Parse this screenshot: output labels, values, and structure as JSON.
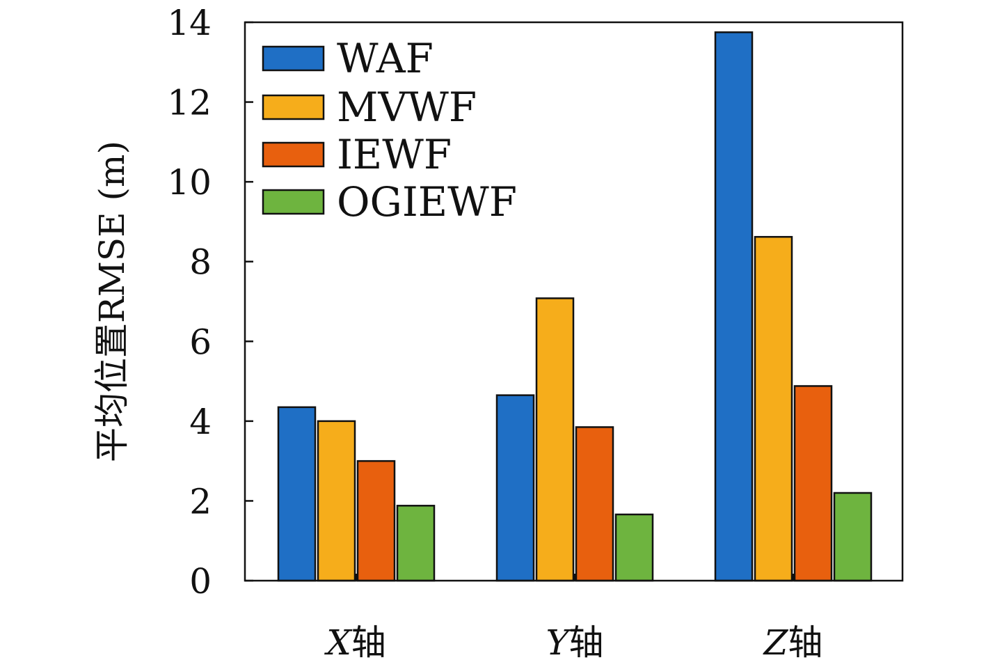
{
  "chart_data": {
    "type": "bar",
    "title": "",
    "xlabel": "",
    "ylabel": "平均位置RMSE (m)",
    "categories": [
      {
        "var": "X",
        "suffix": "轴"
      },
      {
        "var": "Y",
        "suffix": "轴"
      },
      {
        "var": "Z",
        "suffix": "轴"
      }
    ],
    "series": [
      {
        "name": "WAF",
        "color": "#1f6fc5",
        "values": [
          4.35,
          4.65,
          13.75
        ]
      },
      {
        "name": "MVWF",
        "color": "#f6ad1b",
        "values": [
          4.0,
          7.08,
          8.62
        ]
      },
      {
        "name": "IEWF",
        "color": "#e8600e",
        "values": [
          3.0,
          3.85,
          4.88
        ]
      },
      {
        "name": "OGIEWF",
        "color": "#6eb43f",
        "values": [
          1.88,
          1.66,
          2.2
        ]
      }
    ],
    "ylim": [
      0,
      14
    ],
    "yticks": [
      0,
      2,
      4,
      6,
      8,
      10,
      12,
      14
    ],
    "ytick_labels": [
      "0",
      "2",
      "4",
      "6",
      "8",
      "10",
      "12",
      "14"
    ],
    "grid": false,
    "legend_position": "top-left"
  }
}
